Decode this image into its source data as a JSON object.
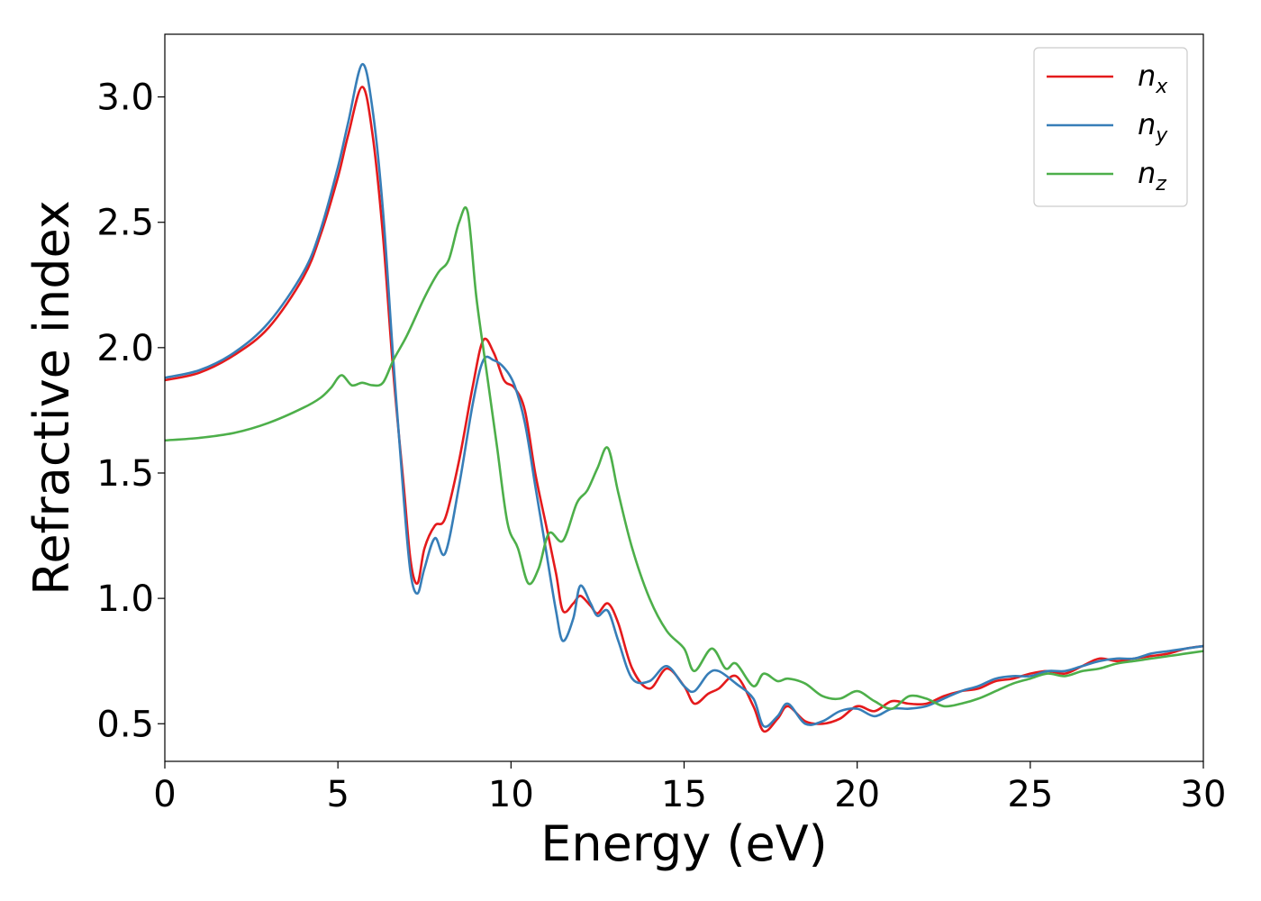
{
  "chart_data": {
    "type": "line",
    "title": "",
    "xlabel": "Energy (eV)",
    "ylabel": "Refractive index",
    "xlim": [
      0,
      30
    ],
    "ylim": [
      0.35,
      3.25
    ],
    "xticks": [
      0,
      5,
      10,
      15,
      20,
      25,
      30
    ],
    "xtick_labels": [
      "0",
      "5",
      "10",
      "15",
      "20",
      "25",
      "30"
    ],
    "yticks": [
      0.5,
      1.0,
      1.5,
      2.0,
      2.5,
      3.0
    ],
    "ytick_labels": [
      "0.5",
      "1.0",
      "1.5",
      "2.0",
      "2.5",
      "3.0"
    ],
    "grid": false,
    "legend_position": "top-right",
    "series": [
      {
        "name": "n_x",
        "legend_main": "n",
        "legend_sub": "x",
        "color": "#e41a1c",
        "x": [
          0,
          1,
          2,
          3,
          4,
          4.5,
          5,
          5.3,
          5.7,
          6.0,
          6.3,
          6.6,
          6.9,
          7.1,
          7.3,
          7.5,
          7.8,
          8.1,
          8.5,
          8.9,
          9.2,
          9.5,
          9.8,
          10.1,
          10.4,
          10.7,
          11.0,
          11.3,
          11.5,
          11.8,
          12.0,
          12.3,
          12.5,
          12.8,
          13.1,
          13.5,
          14.0,
          14.5,
          15.0,
          15.3,
          15.7,
          16.0,
          16.5,
          17.0,
          17.3,
          17.7,
          18.0,
          18.5,
          19.0,
          19.5,
          20.0,
          20.5,
          21.0,
          21.5,
          22.0,
          22.5,
          23.0,
          23.5,
          24.0,
          24.5,
          25.0,
          25.5,
          26.0,
          26.5,
          27.0,
          27.5,
          28.0,
          28.5,
          29.0,
          29.5,
          30.0
        ],
        "y": [
          1.87,
          1.9,
          1.97,
          2.08,
          2.28,
          2.45,
          2.68,
          2.85,
          3.04,
          2.85,
          2.45,
          1.9,
          1.45,
          1.15,
          1.06,
          1.2,
          1.29,
          1.32,
          1.55,
          1.85,
          2.03,
          1.98,
          1.87,
          1.84,
          1.75,
          1.5,
          1.3,
          1.1,
          0.95,
          0.98,
          1.01,
          0.97,
          0.94,
          0.98,
          0.9,
          0.72,
          0.64,
          0.72,
          0.65,
          0.58,
          0.62,
          0.64,
          0.69,
          0.57,
          0.47,
          0.52,
          0.57,
          0.51,
          0.5,
          0.52,
          0.57,
          0.55,
          0.59,
          0.58,
          0.58,
          0.61,
          0.63,
          0.64,
          0.67,
          0.68,
          0.7,
          0.71,
          0.7,
          0.73,
          0.76,
          0.75,
          0.76,
          0.77,
          0.78,
          0.8,
          0.81
        ]
      },
      {
        "name": "n_y",
        "legend_main": "n",
        "legend_sub": "y",
        "color": "#377eb8",
        "x": [
          0,
          1,
          2,
          3,
          4,
          4.5,
          5,
          5.3,
          5.7,
          6.0,
          6.3,
          6.6,
          6.9,
          7.1,
          7.3,
          7.5,
          7.8,
          8.1,
          8.5,
          8.9,
          9.2,
          9.5,
          9.8,
          10.1,
          10.4,
          10.7,
          11.0,
          11.3,
          11.5,
          11.8,
          12.0,
          12.3,
          12.5,
          12.8,
          13.1,
          13.5,
          14.0,
          14.5,
          15.0,
          15.3,
          15.7,
          16.0,
          16.5,
          17.0,
          17.3,
          17.7,
          18.0,
          18.5,
          19.0,
          19.5,
          20.0,
          20.5,
          21.0,
          21.5,
          22.0,
          22.5,
          23.0,
          23.5,
          24.0,
          24.5,
          25.0,
          25.5,
          26.0,
          26.5,
          27.0,
          27.5,
          28.0,
          28.5,
          29.0,
          29.5,
          30.0
        ],
        "y": [
          1.88,
          1.91,
          1.98,
          2.1,
          2.3,
          2.47,
          2.72,
          2.9,
          3.13,
          2.95,
          2.55,
          1.95,
          1.4,
          1.1,
          1.02,
          1.12,
          1.24,
          1.18,
          1.45,
          1.78,
          1.95,
          1.95,
          1.92,
          1.85,
          1.7,
          1.45,
          1.2,
          0.95,
          0.83,
          0.92,
          1.05,
          0.98,
          0.93,
          0.95,
          0.83,
          0.68,
          0.67,
          0.73,
          0.65,
          0.63,
          0.7,
          0.71,
          0.66,
          0.6,
          0.49,
          0.53,
          0.58,
          0.5,
          0.51,
          0.55,
          0.56,
          0.53,
          0.56,
          0.56,
          0.57,
          0.6,
          0.63,
          0.65,
          0.68,
          0.69,
          0.69,
          0.71,
          0.71,
          0.73,
          0.75,
          0.76,
          0.76,
          0.78,
          0.79,
          0.8,
          0.81
        ]
      },
      {
        "name": "n_z",
        "legend_main": "n",
        "legend_sub": "z",
        "color": "#4daf4a",
        "x": [
          0,
          1,
          2,
          3,
          4,
          4.5,
          4.8,
          5.1,
          5.4,
          5.7,
          6.0,
          6.3,
          6.6,
          7.0,
          7.5,
          7.9,
          8.2,
          8.5,
          8.75,
          9.0,
          9.3,
          9.6,
          9.9,
          10.2,
          10.5,
          10.8,
          11.1,
          11.5,
          11.9,
          12.2,
          12.5,
          12.8,
          13.1,
          13.5,
          14.0,
          14.5,
          15.0,
          15.3,
          15.8,
          16.2,
          16.5,
          17.0,
          17.3,
          17.7,
          18.0,
          18.5,
          19.0,
          19.5,
          20.0,
          20.5,
          21.0,
          21.5,
          22.0,
          22.5,
          23.0,
          23.5,
          24.0,
          24.5,
          25.0,
          25.5,
          26.0,
          26.5,
          27.0,
          27.5,
          28.0,
          28.5,
          29.0,
          29.5,
          30.0
        ],
        "y": [
          1.63,
          1.64,
          1.66,
          1.7,
          1.76,
          1.8,
          1.84,
          1.89,
          1.85,
          1.86,
          1.85,
          1.86,
          1.95,
          2.05,
          2.2,
          2.3,
          2.35,
          2.5,
          2.54,
          2.2,
          1.9,
          1.6,
          1.3,
          1.2,
          1.06,
          1.12,
          1.26,
          1.23,
          1.38,
          1.43,
          1.52,
          1.6,
          1.42,
          1.2,
          1.0,
          0.87,
          0.8,
          0.71,
          0.8,
          0.72,
          0.74,
          0.65,
          0.7,
          0.67,
          0.68,
          0.66,
          0.61,
          0.6,
          0.63,
          0.59,
          0.56,
          0.61,
          0.6,
          0.57,
          0.58,
          0.6,
          0.63,
          0.66,
          0.68,
          0.7,
          0.69,
          0.71,
          0.72,
          0.74,
          0.75,
          0.76,
          0.77,
          0.78,
          0.79
        ]
      }
    ]
  }
}
